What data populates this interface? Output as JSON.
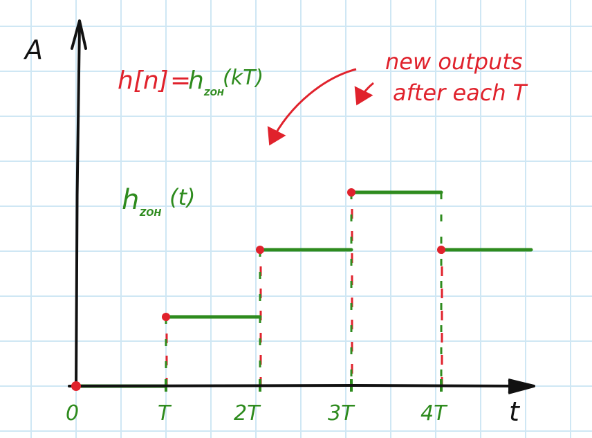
{
  "colors": {
    "grid": "#cfe7f4",
    "axis": "#111111",
    "signal": "#2e8b1e",
    "samples": "#e0222c"
  },
  "axis_labels": {
    "y": "A",
    "x": "t"
  },
  "tick_labels": [
    "0",
    "T",
    "2T",
    "3T",
    "4T"
  ],
  "formula": {
    "lhs": "h[n]",
    "equals": "=",
    "h": "h",
    "sub": "ZOH",
    "arg": "(kT)"
  },
  "signal_label": {
    "h": "h",
    "sub": "ZOH",
    "arg": "(t)"
  },
  "annotation": {
    "line1": "new outputs",
    "line2": "after each T"
  },
  "levels": [
    0,
    1,
    2,
    3,
    2
  ]
}
